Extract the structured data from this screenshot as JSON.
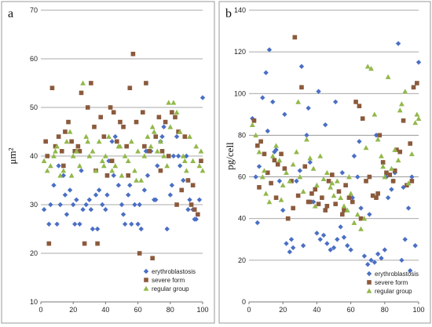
{
  "chart_data": [
    {
      "type": "scatter",
      "panel_label": "a",
      "ylabel": "μm²",
      "xlim": [
        0,
        100
      ],
      "ylim": [
        10,
        70
      ],
      "xticks": [
        0,
        20,
        40,
        60,
        80,
        100
      ],
      "yticks": [
        10,
        20,
        30,
        40,
        50,
        60,
        70
      ],
      "grid": true,
      "legend_position": "bottom-right",
      "series": [
        {
          "name": "erythroblastosis",
          "marker": "diamond",
          "color": "#4a6fc4",
          "x": [
            2,
            5,
            8,
            10,
            12,
            14,
            16,
            18,
            20,
            22,
            24,
            26,
            28,
            30,
            32,
            34,
            36,
            38,
            40,
            42,
            44,
            46,
            48,
            50,
            52,
            54,
            56,
            58,
            60,
            62,
            64,
            66,
            68,
            70,
            72,
            74,
            76,
            78,
            80,
            82,
            84,
            86,
            88,
            90,
            92,
            94,
            96,
            98,
            100,
            6,
            15,
            25,
            35,
            45,
            55,
            65,
            75,
            85,
            95,
            11,
            21,
            31,
            41,
            51,
            61,
            71,
            81,
            91
          ],
          "y": [
            29,
            26,
            34,
            26,
            30,
            36,
            28,
            33,
            30,
            31,
            26,
            29,
            30,
            31,
            25,
            32,
            33,
            30,
            29,
            39,
            43,
            44,
            34,
            30,
            26,
            32,
            26,
            30,
            26,
            25,
            33,
            36,
            41,
            31,
            38,
            43,
            46,
            25,
            32,
            40,
            44,
            38,
            35,
            40,
            31,
            29,
            27,
            31,
            52,
            30,
            32,
            37,
            25,
            36,
            34,
            41,
            44,
            40,
            27,
            38,
            26,
            29,
            32,
            28,
            30,
            31,
            34,
            29
          ]
        },
        {
          "name": "severe form",
          "marker": "square",
          "color": "#8b5a3c",
          "x": [
            3,
            5,
            7,
            9,
            11,
            13,
            15,
            17,
            19,
            21,
            23,
            25,
            27,
            29,
            31,
            33,
            35,
            37,
            39,
            41,
            43,
            45,
            47,
            49,
            51,
            53,
            55,
            57,
            59,
            61,
            63,
            65,
            67,
            69,
            71,
            73,
            75,
            77,
            79,
            81,
            83,
            85,
            87,
            89,
            91,
            93,
            95,
            97,
            99,
            4,
            14,
            24,
            34,
            44,
            54,
            64,
            74,
            84,
            94
          ],
          "y": [
            43,
            22,
            54,
            42,
            44,
            41,
            45,
            47,
            43,
            41,
            42,
            53,
            22,
            50,
            55,
            46,
            22,
            48,
            44,
            36,
            50,
            49,
            43,
            47,
            46,
            42,
            54,
            61,
            47,
            20,
            49,
            55,
            41,
            19,
            44,
            48,
            41,
            47,
            40,
            49,
            48,
            45,
            33,
            44,
            35,
            30,
            29,
            28,
            39,
            40,
            38,
            41,
            37,
            39,
            36,
            42,
            37,
            30,
            34
          ]
        },
        {
          "name": "regular group",
          "marker": "triangle",
          "color": "#92b84a",
          "x": [
            2,
            4,
            6,
            8,
            10,
            12,
            14,
            16,
            18,
            20,
            22,
            24,
            26,
            28,
            30,
            32,
            34,
            36,
            38,
            40,
            42,
            44,
            46,
            48,
            50,
            52,
            54,
            56,
            58,
            60,
            62,
            64,
            66,
            68,
            70,
            72,
            74,
            76,
            78,
            80,
            82,
            84,
            86,
            88,
            90,
            92,
            94,
            96,
            98,
            100,
            9,
            19,
            29,
            39,
            49,
            59,
            69,
            79,
            89,
            99
          ],
          "y": [
            39,
            37,
            38,
            40,
            42,
            36,
            37,
            43,
            45,
            40,
            41,
            38,
            55,
            44,
            40,
            41,
            37,
            43,
            39,
            40,
            44,
            37,
            38,
            42,
            36,
            40,
            39,
            43,
            37,
            41,
            35,
            40,
            44,
            42,
            45,
            41,
            43,
            40,
            38,
            46,
            51,
            49,
            45,
            40,
            37,
            44,
            39,
            42,
            38,
            37,
            41,
            36,
            43,
            38,
            42,
            35,
            46,
            51,
            39,
            41
          ]
        }
      ]
    },
    {
      "type": "scatter",
      "panel_label": "b",
      "ylabel": "pg/cell",
      "xlim": [
        0,
        100
      ],
      "ylim": [
        0,
        140
      ],
      "xticks": [
        0,
        20,
        40,
        60,
        80,
        100
      ],
      "yticks": [
        0,
        20,
        40,
        60,
        80,
        100,
        120,
        140
      ],
      "grid": true,
      "legend_position": "bottom-right",
      "series": [
        {
          "name": "erythroblastosis",
          "marker": "diamond",
          "color": "#4a6fc4",
          "x": [
            2,
            4,
            6,
            8,
            10,
            12,
            14,
            16,
            18,
            20,
            22,
            24,
            26,
            28,
            30,
            32,
            34,
            36,
            38,
            40,
            42,
            44,
            46,
            48,
            50,
            52,
            54,
            56,
            58,
            60,
            62,
            64,
            66,
            68,
            70,
            72,
            74,
            76,
            78,
            80,
            82,
            84,
            86,
            88,
            90,
            92,
            94,
            96,
            98,
            100,
            5,
            15,
            25,
            35,
            45,
            55,
            65,
            75,
            85,
            95,
            11,
            21,
            31,
            41,
            51,
            61,
            71,
            81,
            91
          ],
          "y": [
            88,
            60,
            65,
            98,
            110,
            121,
            96,
            73,
            58,
            44,
            28,
            24,
            26,
            58,
            63,
            27,
            80,
            67,
            48,
            33,
            30,
            32,
            28,
            25,
            26,
            30,
            36,
            31,
            27,
            25,
            70,
            60,
            45,
            22,
            18,
            20,
            19,
            23,
            21,
            25,
            50,
            54,
            62,
            124,
            20,
            30,
            45,
            60,
            27,
            115,
            38,
            72,
            30,
            93,
            85,
            62,
            77,
            80,
            58,
            15,
            82,
            90,
            113,
            101,
            96,
            50,
            42,
            60,
            55
          ]
        },
        {
          "name": "severe form",
          "marker": "square",
          "color": "#8b5a3c",
          "x": [
            3,
            5,
            7,
            9,
            11,
            13,
            15,
            17,
            19,
            21,
            23,
            25,
            27,
            29,
            31,
            33,
            35,
            37,
            39,
            41,
            43,
            45,
            47,
            49,
            51,
            53,
            55,
            57,
            59,
            61,
            63,
            65,
            67,
            69,
            71,
            73,
            75,
            77,
            79,
            81,
            83,
            85,
            87,
            89,
            91,
            93,
            95,
            97,
            99,
            6,
            16,
            26,
            36,
            46,
            56,
            66,
            76,
            86,
            96
          ],
          "y": [
            87,
            75,
            77,
            71,
            62,
            57,
            68,
            66,
            71,
            64,
            40,
            58,
            127,
            51,
            103,
            65,
            48,
            52,
            54,
            47,
            50,
            44,
            58,
            61,
            47,
            53,
            42,
            56,
            50,
            48,
            96,
            94,
            88,
            58,
            60,
            51,
            50,
            80,
            67,
            62,
            61,
            58,
            73,
            72,
            87,
            56,
            76,
            103,
            105,
            55,
            50,
            45,
            48,
            46,
            44,
            40,
            52,
            63,
            58
          ]
        },
        {
          "name": "regular group",
          "marker": "triangle",
          "color": "#92b84a",
          "x": [
            2,
            4,
            6,
            8,
            10,
            12,
            14,
            16,
            18,
            20,
            22,
            24,
            26,
            28,
            30,
            32,
            34,
            36,
            38,
            40,
            42,
            44,
            46,
            48,
            50,
            52,
            54,
            56,
            58,
            60,
            62,
            64,
            66,
            68,
            70,
            72,
            74,
            76,
            78,
            80,
            82,
            84,
            86,
            88,
            90,
            92,
            94,
            96,
            98,
            100,
            9,
            19,
            29,
            39,
            49,
            59,
            69,
            79,
            89,
            99
          ],
          "y": [
            85,
            80,
            72,
            60,
            52,
            48,
            70,
            75,
            68,
            56,
            62,
            58,
            66,
            72,
            60,
            53,
            78,
            69,
            64,
            56,
            70,
            59,
            62,
            55,
            51,
            58,
            50,
            46,
            44,
            52,
            38,
            42,
            35,
            40,
            113,
            112,
            90,
            78,
            70,
            60,
            108,
            64,
            73,
            68,
            95,
            101,
            57,
            71,
            86,
            88,
            63,
            49,
            96,
            46,
            57,
            60,
            74,
            65,
            92,
            90
          ]
        }
      ]
    }
  ]
}
